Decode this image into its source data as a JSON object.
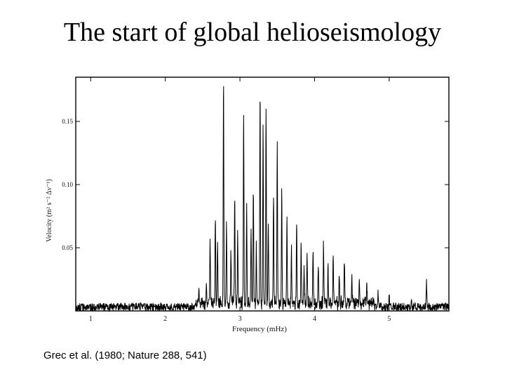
{
  "slide": {
    "title": "The start of global helioseismology",
    "citation": "Grec et al. (1980; Nature 288, 541)"
  },
  "chart_data": {
    "type": "line",
    "title": "",
    "xlabel": "Frequency (mHz)",
    "ylabel": "Velocity (m² s⁻² Δν⁻¹)",
    "xlim": [
      0.8,
      5.8
    ],
    "ylim": [
      0,
      0.185
    ],
    "x_ticks": [
      {
        "value": 1,
        "label": "1"
      },
      {
        "value": 2,
        "label": "2"
      },
      {
        "value": 3,
        "label": "3"
      },
      {
        "value": 4,
        "label": "4"
      },
      {
        "value": 5,
        "label": "5"
      }
    ],
    "y_ticks": [
      {
        "value": 0.05,
        "label": "0.05"
      },
      {
        "value": 0.1,
        "label": "0.10"
      },
      {
        "value": 0.15,
        "label": "0.15"
      }
    ],
    "grid": false,
    "legend": "none",
    "noise_level": 0.004,
    "series": [
      {
        "peaks": [
          {
            "x": 2.45,
            "y": 0.012
          },
          {
            "x": 2.55,
            "y": 0.018
          },
          {
            "x": 2.6,
            "y": 0.055
          },
          {
            "x": 2.67,
            "y": 0.075
          },
          {
            "x": 2.7,
            "y": 0.055
          },
          {
            "x": 2.78,
            "y": 0.185
          },
          {
            "x": 2.82,
            "y": 0.07
          },
          {
            "x": 2.88,
            "y": 0.045
          },
          {
            "x": 2.93,
            "y": 0.1
          },
          {
            "x": 2.97,
            "y": 0.06
          },
          {
            "x": 3.05,
            "y": 0.165
          },
          {
            "x": 3.09,
            "y": 0.085
          },
          {
            "x": 3.15,
            "y": 0.06
          },
          {
            "x": 3.18,
            "y": 0.1
          },
          {
            "x": 3.22,
            "y": 0.05
          },
          {
            "x": 3.27,
            "y": 0.185
          },
          {
            "x": 3.31,
            "y": 0.155
          },
          {
            "x": 3.35,
            "y": 0.17
          },
          {
            "x": 3.38,
            "y": 0.07
          },
          {
            "x": 3.45,
            "y": 0.09
          },
          {
            "x": 3.5,
            "y": 0.135
          },
          {
            "x": 3.56,
            "y": 0.095
          },
          {
            "x": 3.63,
            "y": 0.07
          },
          {
            "x": 3.69,
            "y": 0.05
          },
          {
            "x": 3.76,
            "y": 0.07
          },
          {
            "x": 3.82,
            "y": 0.05
          },
          {
            "x": 3.86,
            "y": 0.03
          },
          {
            "x": 3.9,
            "y": 0.045
          },
          {
            "x": 3.98,
            "y": 0.05
          },
          {
            "x": 4.05,
            "y": 0.035
          },
          {
            "x": 4.12,
            "y": 0.05
          },
          {
            "x": 4.18,
            "y": 0.03
          },
          {
            "x": 4.25,
            "y": 0.04
          },
          {
            "x": 4.33,
            "y": 0.025
          },
          {
            "x": 4.4,
            "y": 0.04
          },
          {
            "x": 4.5,
            "y": 0.02
          },
          {
            "x": 4.6,
            "y": 0.018
          },
          {
            "x": 4.7,
            "y": 0.015
          },
          {
            "x": 4.85,
            "y": 0.012
          },
          {
            "x": 5.0,
            "y": 0.01
          },
          {
            "x": 5.3,
            "y": 0.008
          },
          {
            "x": 5.5,
            "y": 0.022
          }
        ]
      }
    ]
  }
}
